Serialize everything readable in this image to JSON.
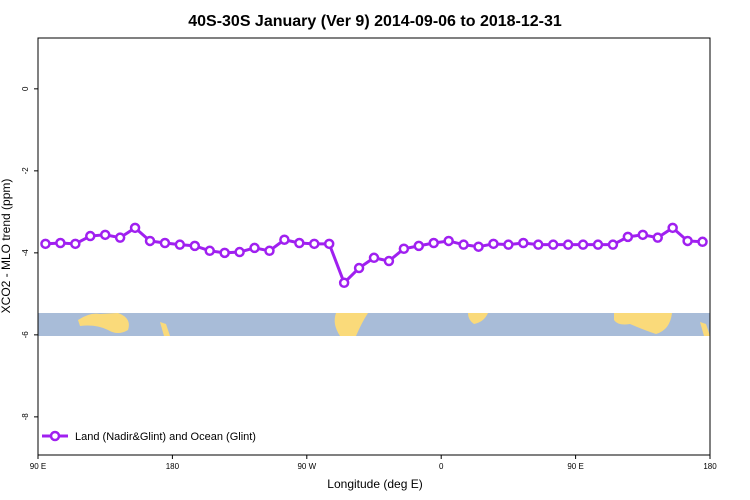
{
  "chart_data": {
    "type": "line",
    "title": "40S-30S January (Ver 9)   2014-09-06 to 2018-12-31",
    "xlabel": "Longitude (deg E)",
    "ylabel": "XCO2 - MLO trend (ppm)",
    "xlim": [
      90,
      540
    ],
    "ylim": [
      -8.93,
      1.24
    ],
    "xticks": [
      {
        "value": 90,
        "label": "90 E"
      },
      180,
      {
        "value": 270,
        "label": "90 W"
      },
      {
        "value": 360,
        "label": "0"
      },
      {
        "value": 450,
        "label": "90 E"
      },
      {
        "value": 540,
        "label": "180"
      }
    ],
    "yticks": [
      0,
      -2,
      -4,
      -6,
      -8
    ],
    "legend": "bottom-left",
    "x": [
      95,
      105,
      115,
      125,
      135,
      145,
      155,
      165,
      175,
      185,
      195,
      205,
      215,
      225,
      235,
      245,
      255,
      265,
      275,
      285,
      295,
      305,
      315,
      325,
      335,
      345,
      355,
      365,
      375,
      385,
      395,
      405,
      415,
      425,
      435,
      445,
      455,
      465,
      475,
      485,
      495,
      505,
      515,
      525,
      535
    ],
    "series": [
      {
        "name": "Land (Nadir&Glint) and Ocean (Glint)",
        "color": "#a020f0",
        "values": [
          -3.78,
          -3.76,
          -3.78,
          -3.59,
          -3.56,
          -3.63,
          -3.39,
          -3.71,
          -3.76,
          -3.8,
          -3.83,
          -3.95,
          -4.0,
          -3.98,
          -3.88,
          -3.95,
          -3.68,
          -3.76,
          -3.78,
          -3.78,
          -4.73,
          -4.37,
          -4.12,
          -4.2,
          -3.9,
          -3.83,
          -3.76,
          -3.71,
          -3.8,
          -3.85,
          -3.78,
          -3.8,
          -3.76,
          -3.8,
          -3.8,
          -3.8,
          -3.8,
          -3.8,
          -3.8,
          -3.61,
          -3.56,
          -3.63,
          -3.39,
          -3.71,
          -3.73
        ]
      }
    ]
  }
}
